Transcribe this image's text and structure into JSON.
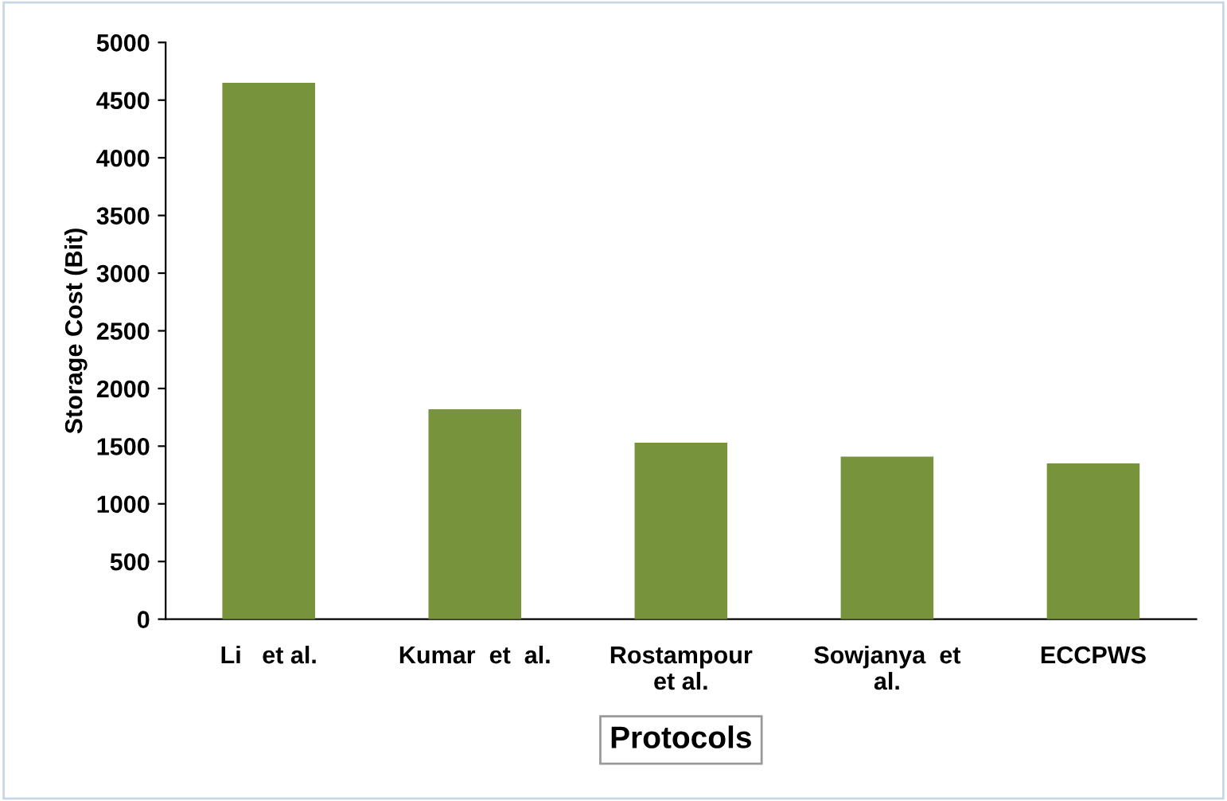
{
  "chart_data": {
    "type": "bar",
    "categories": [
      "Li   et al.",
      "Kumar  et  al.",
      "Rostampour\net al.",
      "Sowjanya  et\nal.",
      "ECCPWS"
    ],
    "values": [
      4650,
      1820,
      1530,
      1410,
      1350
    ],
    "color": "#77933c",
    "xlabel": "Protocols",
    "ylabel": "Storage Cost (Bit)",
    "ylim": [
      0,
      5000
    ],
    "yticks": [
      0,
      500,
      1000,
      1500,
      2000,
      2500,
      3000,
      3500,
      4000,
      4500,
      5000
    ],
    "grid": false
  }
}
